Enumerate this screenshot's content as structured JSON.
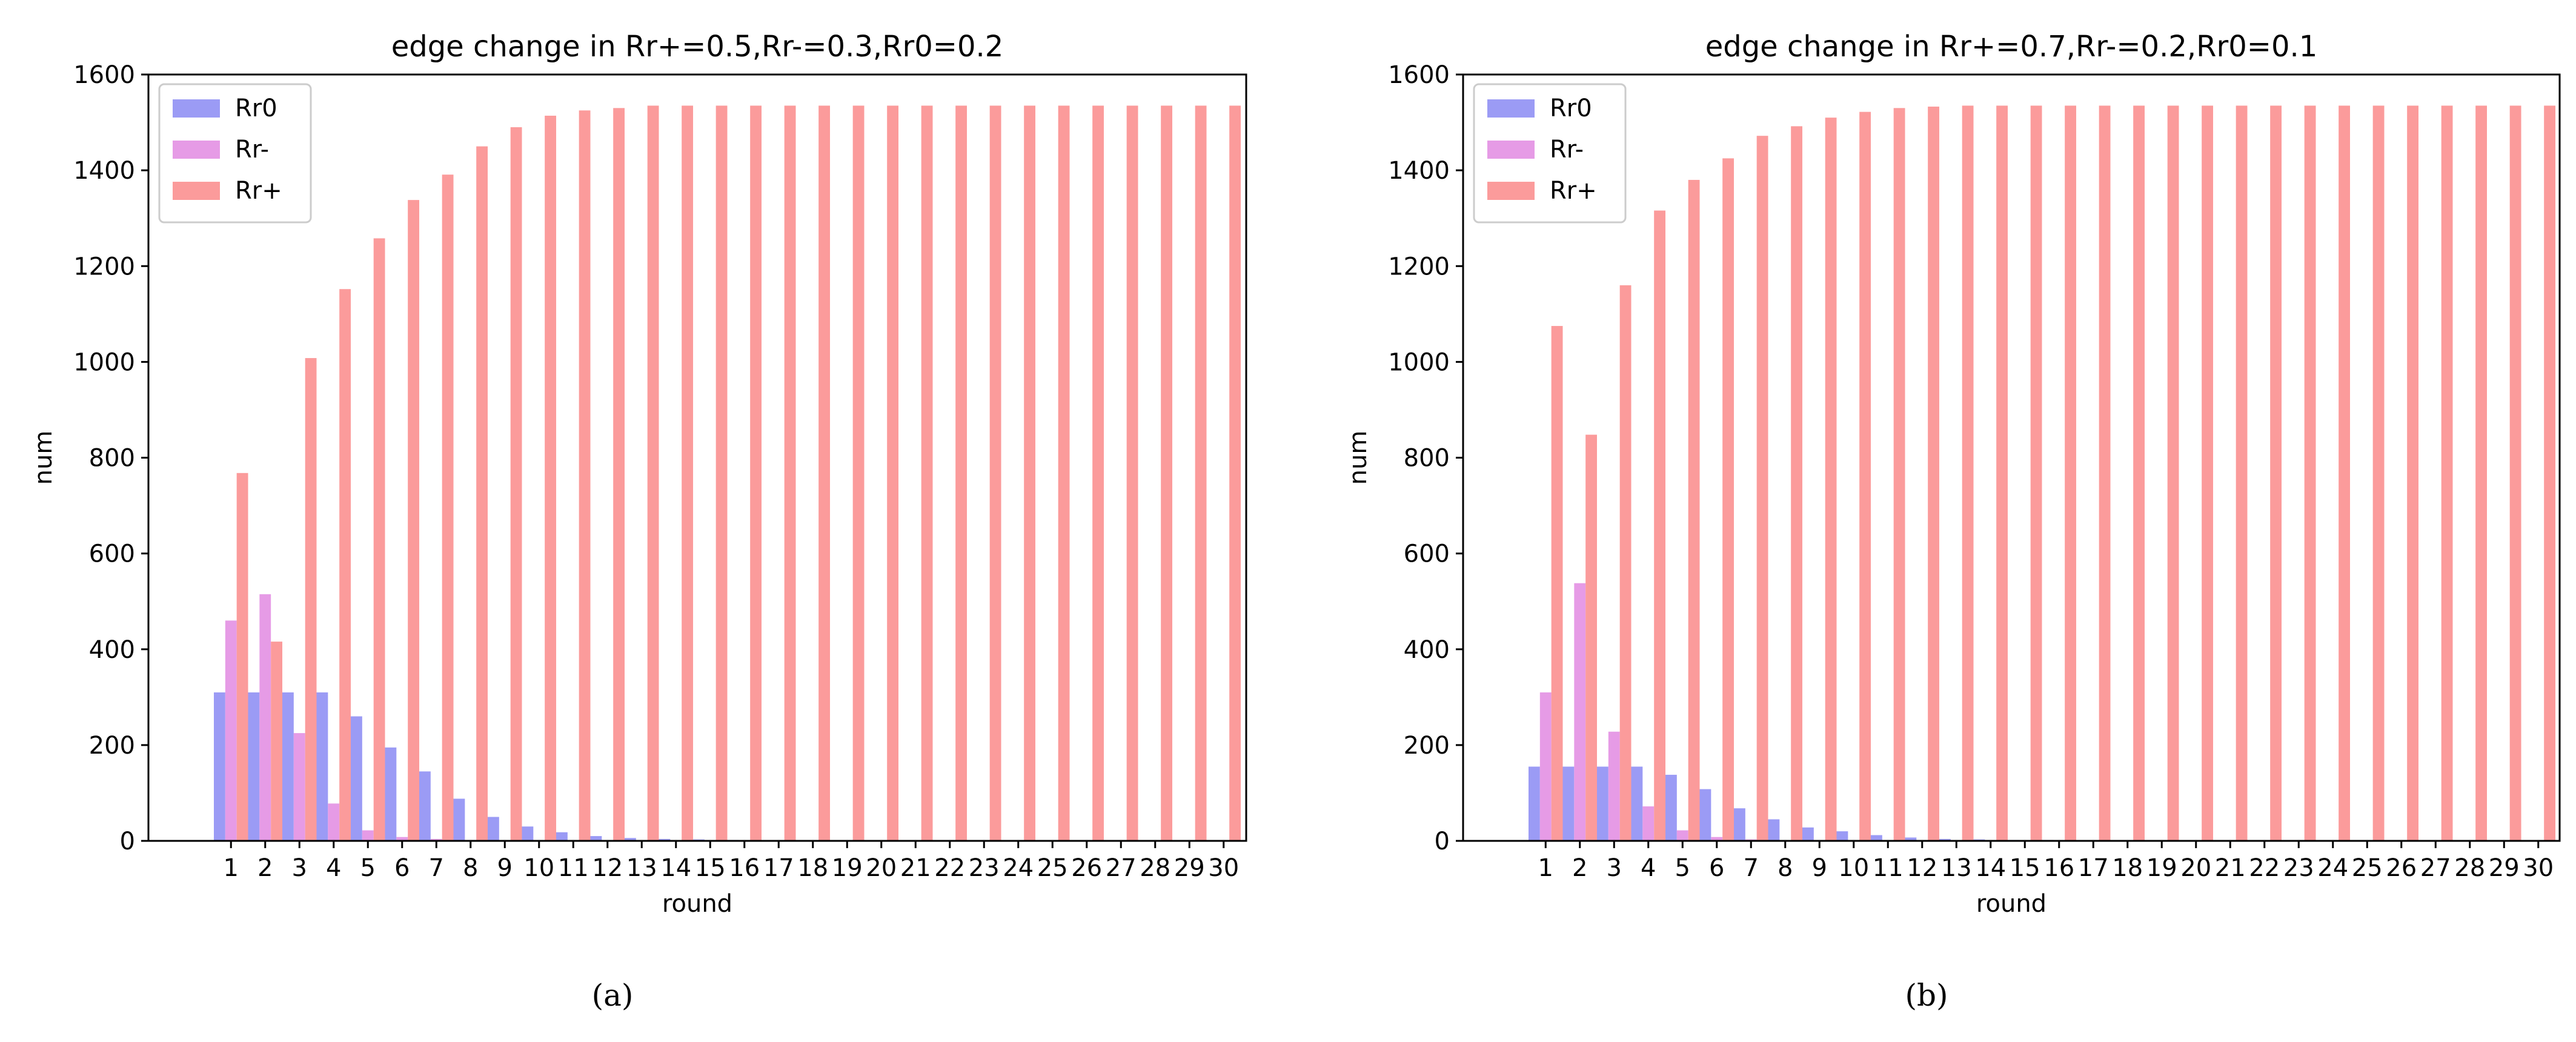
{
  "chart_data": [
    {
      "type": "bar",
      "title": "edge change in Rr+=0.5,Rr-=0.3,Rr0=0.2",
      "xlabel": "round",
      "ylabel": "num",
      "ylim": [
        0,
        1600
      ],
      "yticks": [
        0,
        200,
        400,
        600,
        800,
        1000,
        1200,
        1400,
        1600
      ],
      "legend_position": "top-left",
      "caption": "(a)",
      "categories": [
        "1",
        "2",
        "3",
        "4",
        "5",
        "6",
        "7",
        "8",
        "9",
        "10",
        "11",
        "12",
        "13",
        "14",
        "15",
        "16",
        "17",
        "18",
        "19",
        "20",
        "21",
        "22",
        "23",
        "24",
        "25",
        "26",
        "27",
        "28",
        "29",
        "30"
      ],
      "series": [
        {
          "name": "Rr0",
          "color": "#9b9bf5",
          "values": [
            310,
            310,
            310,
            310,
            260,
            195,
            145,
            88,
            50,
            30,
            18,
            10,
            6,
            4,
            3,
            2,
            1,
            1,
            0,
            0,
            0,
            0,
            0,
            0,
            0,
            0,
            0,
            0,
            0,
            0
          ]
        },
        {
          "name": "Rr-",
          "color": "#e69be6",
          "values": [
            460,
            515,
            225,
            78,
            22,
            8,
            4,
            2,
            1,
            0,
            0,
            0,
            0,
            0,
            0,
            0,
            0,
            0,
            0,
            0,
            0,
            0,
            0,
            0,
            0,
            0,
            0,
            0,
            0,
            0
          ]
        },
        {
          "name": "Rr+",
          "color": "#fb9b9b",
          "values": [
            768,
            416,
            1008,
            1152,
            1258,
            1338,
            1391,
            1450,
            1490,
            1514,
            1525,
            1530,
            1535,
            1535,
            1535,
            1535,
            1535,
            1535,
            1535,
            1535,
            1535,
            1535,
            1535,
            1535,
            1535,
            1535,
            1535,
            1535,
            1535,
            1535
          ]
        }
      ]
    },
    {
      "type": "bar",
      "title": "edge change in Rr+=0.7,Rr-=0.2,Rr0=0.1",
      "xlabel": "round",
      "ylabel": "num",
      "ylim": [
        0,
        1600
      ],
      "yticks": [
        0,
        200,
        400,
        600,
        800,
        1000,
        1200,
        1400,
        1600
      ],
      "legend_position": "top-left",
      "caption": "(b)",
      "categories": [
        "1",
        "2",
        "3",
        "4",
        "5",
        "6",
        "7",
        "8",
        "9",
        "10",
        "11",
        "12",
        "13",
        "14",
        "15",
        "16",
        "17",
        "18",
        "19",
        "20",
        "21",
        "22",
        "23",
        "24",
        "25",
        "26",
        "27",
        "28",
        "29",
        "30"
      ],
      "series": [
        {
          "name": "Rr0",
          "color": "#9b9bf5",
          "values": [
            155,
            155,
            155,
            155,
            138,
            108,
            68,
            45,
            28,
            20,
            12,
            7,
            4,
            3,
            2,
            2,
            1,
            1,
            0,
            0,
            0,
            0,
            0,
            0,
            0,
            0,
            0,
            0,
            0,
            0
          ]
        },
        {
          "name": "Rr-",
          "color": "#e69be6",
          "values": [
            310,
            538,
            228,
            72,
            22,
            8,
            3,
            1,
            1,
            0,
            0,
            0,
            0,
            0,
            0,
            0,
            0,
            0,
            0,
            0,
            0,
            0,
            0,
            0,
            0,
            0,
            0,
            0,
            0,
            0
          ]
        },
        {
          "name": "Rr+",
          "color": "#fb9b9b",
          "values": [
            1075,
            848,
            1160,
            1316,
            1380,
            1425,
            1472,
            1492,
            1510,
            1522,
            1530,
            1533,
            1535,
            1535,
            1535,
            1535,
            1535,
            1535,
            1535,
            1535,
            1535,
            1535,
            1535,
            1535,
            1535,
            1535,
            1535,
            1535,
            1535,
            1535
          ]
        }
      ]
    }
  ]
}
